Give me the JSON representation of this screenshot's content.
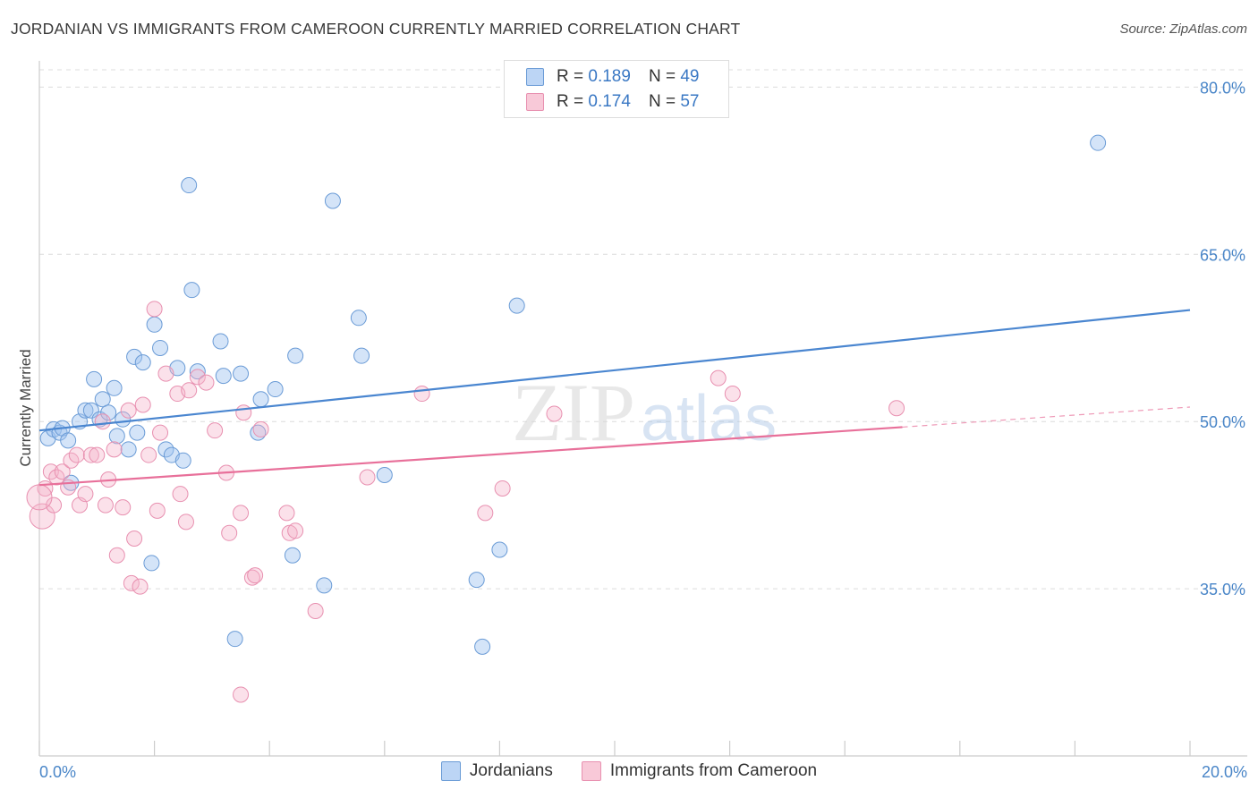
{
  "title": "JORDANIAN VS IMMIGRANTS FROM CAMEROON CURRENTLY MARRIED CORRELATION CHART",
  "source": "Source: ZipAtlas.com",
  "watermark_a": "ZIP",
  "watermark_b": "atlas",
  "legend": {
    "r_label": "R =",
    "n_label": "N =",
    "series": [
      {
        "name": "Jordanians",
        "r": "0.189",
        "n": "49"
      },
      {
        "name": "Immigrants from Cameroon",
        "r": "0.174",
        "n": "57"
      }
    ]
  },
  "chart_data": {
    "type": "scatter",
    "title": "JORDANIAN VS IMMIGRANTS FROM CAMEROON CURRENTLY MARRIED CORRELATION CHART",
    "xlabel": "",
    "ylabel": "Currently Married",
    "xlim": [
      0,
      20
    ],
    "ylim": [
      20,
      83
    ],
    "x_tick_labels": [
      "0.0%",
      "20.0%"
    ],
    "y_ticks": [
      35,
      50,
      65,
      80
    ],
    "y_tick_labels": [
      "35.0%",
      "50.0%",
      "65.0%",
      "80.0%"
    ],
    "grid": true,
    "colors": {
      "Jordanians": "#4a86d0",
      "Immigrants from Cameroon": "#e8709a"
    },
    "series": [
      {
        "name": "Jordanians",
        "trend": {
          "x0": 0,
          "y0": 49.2,
          "x1": 20,
          "y1": 60.0
        },
        "points": [
          [
            0.15,
            48.5
          ],
          [
            0.25,
            49.3
          ],
          [
            0.35,
            49.0
          ],
          [
            0.4,
            49.4
          ],
          [
            0.5,
            48.3
          ],
          [
            0.55,
            44.5
          ],
          [
            0.7,
            50.0
          ],
          [
            0.8,
            51.0
          ],
          [
            0.9,
            51.0
          ],
          [
            0.95,
            53.8
          ],
          [
            1.05,
            50.2
          ],
          [
            1.1,
            52.0
          ],
          [
            1.2,
            50.8
          ],
          [
            1.3,
            53.0
          ],
          [
            1.35,
            48.7
          ],
          [
            1.45,
            50.2
          ],
          [
            1.55,
            47.5
          ],
          [
            1.65,
            55.8
          ],
          [
            1.7,
            49.0
          ],
          [
            1.8,
            55.3
          ],
          [
            1.95,
            37.3
          ],
          [
            2.0,
            58.7
          ],
          [
            2.1,
            56.6
          ],
          [
            2.2,
            47.5
          ],
          [
            2.3,
            47.0
          ],
          [
            2.4,
            54.8
          ],
          [
            2.5,
            46.5
          ],
          [
            2.6,
            71.2
          ],
          [
            2.65,
            61.8
          ],
          [
            2.75,
            54.5
          ],
          [
            3.15,
            57.2
          ],
          [
            3.2,
            54.1
          ],
          [
            3.4,
            30.5
          ],
          [
            3.5,
            54.3
          ],
          [
            3.8,
            49.0
          ],
          [
            3.85,
            52.0
          ],
          [
            4.1,
            52.9
          ],
          [
            4.4,
            38.0
          ],
          [
            4.45,
            55.9
          ],
          [
            4.95,
            35.3
          ],
          [
            5.1,
            69.8
          ],
          [
            5.55,
            59.3
          ],
          [
            5.6,
            55.9
          ],
          [
            6.0,
            45.2
          ],
          [
            7.6,
            35.8
          ],
          [
            7.7,
            29.8
          ],
          [
            8.0,
            38.5
          ],
          [
            8.3,
            60.4
          ],
          [
            18.4,
            75.0
          ]
        ]
      },
      {
        "name": "Immigrants from Cameroon",
        "trend": {
          "x0": 0,
          "y0": 44.3,
          "x1": 15,
          "y1": 49.5
        },
        "trend_dashed": {
          "x0": 15,
          "y0": 49.5,
          "x1": 20,
          "y1": 51.3
        },
        "points": [
          [
            0.05,
            41.5
          ],
          [
            0.1,
            44.0
          ],
          [
            0.2,
            45.5
          ],
          [
            0.25,
            42.5
          ],
          [
            0.3,
            45.0
          ],
          [
            0.4,
            45.5
          ],
          [
            0.5,
            44.1
          ],
          [
            0.55,
            46.5
          ],
          [
            0.65,
            47.0
          ],
          [
            0.7,
            42.5
          ],
          [
            0.8,
            43.5
          ],
          [
            0.9,
            47.0
          ],
          [
            1.0,
            47.0
          ],
          [
            1.1,
            50.0
          ],
          [
            1.15,
            42.5
          ],
          [
            1.2,
            44.8
          ],
          [
            1.3,
            47.5
          ],
          [
            1.35,
            38.0
          ],
          [
            1.45,
            42.3
          ],
          [
            1.55,
            51.0
          ],
          [
            1.6,
            35.5
          ],
          [
            1.65,
            39.5
          ],
          [
            1.75,
            35.2
          ],
          [
            1.8,
            51.5
          ],
          [
            1.9,
            47.0
          ],
          [
            2.0,
            60.1
          ],
          [
            2.05,
            42.0
          ],
          [
            2.1,
            49.0
          ],
          [
            2.2,
            54.3
          ],
          [
            2.4,
            52.5
          ],
          [
            2.45,
            43.5
          ],
          [
            2.55,
            41.0
          ],
          [
            2.6,
            52.8
          ],
          [
            2.75,
            54.0
          ],
          [
            2.9,
            53.5
          ],
          [
            3.05,
            49.2
          ],
          [
            3.25,
            45.4
          ],
          [
            3.3,
            40.0
          ],
          [
            3.5,
            41.8
          ],
          [
            3.5,
            25.5
          ],
          [
            3.55,
            50.8
          ],
          [
            3.7,
            36.0
          ],
          [
            3.75,
            36.2
          ],
          [
            3.85,
            49.3
          ],
          [
            4.3,
            41.8
          ],
          [
            4.35,
            40.0
          ],
          [
            4.45,
            40.2
          ],
          [
            4.8,
            33.0
          ],
          [
            5.7,
            45.0
          ],
          [
            6.65,
            52.5
          ],
          [
            7.75,
            41.8
          ],
          [
            8.05,
            44.0
          ],
          [
            8.95,
            50.7
          ],
          [
            11.8,
            53.9
          ],
          [
            12.05,
            52.5
          ],
          [
            14.9,
            51.2
          ],
          [
            0.0,
            43.2
          ]
        ]
      }
    ]
  }
}
